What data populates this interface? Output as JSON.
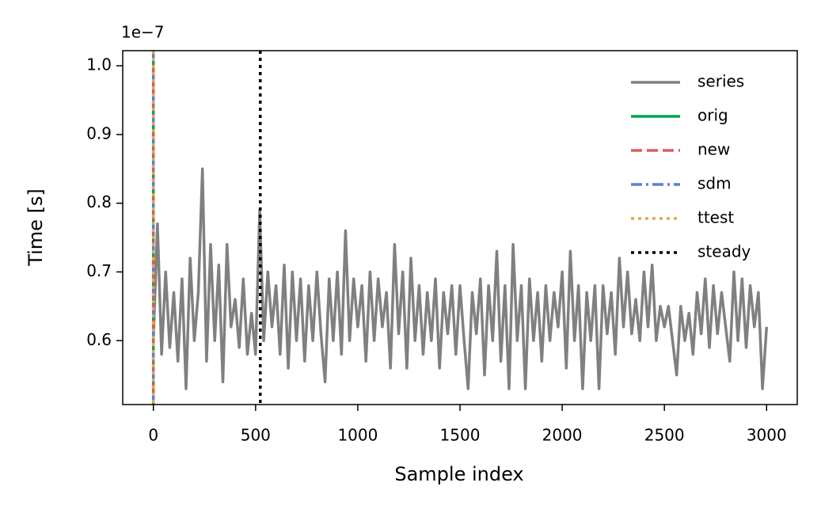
{
  "chart_data": {
    "type": "line",
    "xlabel": "Sample index",
    "ylabel": "Time [s]",
    "offset_text": "1e−7",
    "xlim": [
      -150,
      3150
    ],
    "xticks": [
      0,
      500,
      1000,
      1500,
      2000,
      2500,
      3000
    ],
    "ylim": [
      0.507,
      1.022
    ],
    "yticks": [
      0.6,
      0.7,
      0.8,
      0.9,
      {
        "value": 1,
        "label": "1.0"
      }
    ],
    "legend": "upper right",
    "series": [
      {
        "name": "series",
        "color": "#808080",
        "x": [
          0,
          20,
          40,
          60,
          80,
          100,
          120,
          140,
          160,
          180,
          200,
          220,
          240,
          260,
          280,
          300,
          320,
          340,
          360,
          380,
          400,
          420,
          440,
          460,
          480,
          500,
          520,
          540,
          560,
          580,
          600,
          620,
          640,
          660,
          680,
          700,
          720,
          740,
          760,
          780,
          800,
          820,
          840,
          860,
          880,
          900,
          920,
          940,
          960,
          980,
          1000,
          1020,
          1040,
          1060,
          1080,
          1100,
          1120,
          1140,
          1160,
          1180,
          1200,
          1220,
          1240,
          1260,
          1280,
          1300,
          1320,
          1340,
          1360,
          1380,
          1400,
          1420,
          1440,
          1460,
          1480,
          1500,
          1520,
          1540,
          1560,
          1580,
          1600,
          1620,
          1640,
          1660,
          1680,
          1700,
          1720,
          1740,
          1760,
          1780,
          1800,
          1820,
          1840,
          1860,
          1880,
          1900,
          1920,
          1940,
          1960,
          1980,
          2000,
          2020,
          2040,
          2060,
          2080,
          2100,
          2120,
          2140,
          2160,
          2180,
          2200,
          2220,
          2240,
          2260,
          2280,
          2300,
          2320,
          2340,
          2360,
          2380,
          2400,
          2420,
          2440,
          2460,
          2480,
          2500,
          2520,
          2540,
          2560,
          2580,
          2600,
          2620,
          2640,
          2660,
          2680,
          2700,
          2720,
          2740,
          2760,
          2780,
          2800,
          2820,
          2840,
          2860,
          2880,
          2900,
          2920,
          2940,
          2960,
          2980,
          3000
        ],
        "values": [
          0.6,
          0.77,
          0.58,
          0.7,
          0.59,
          0.67,
          0.57,
          0.69,
          0.53,
          0.72,
          0.6,
          0.67,
          0.85,
          0.57,
          0.74,
          0.6,
          0.71,
          0.54,
          0.74,
          0.62,
          0.66,
          0.59,
          0.69,
          0.58,
          0.64,
          0.58,
          0.79,
          0.6,
          0.7,
          0.62,
          0.68,
          0.58,
          0.71,
          0.56,
          0.7,
          0.6,
          0.69,
          0.57,
          0.68,
          0.6,
          0.7,
          0.61,
          0.54,
          0.69,
          0.6,
          0.7,
          0.58,
          0.76,
          0.6,
          0.69,
          0.62,
          0.68,
          0.57,
          0.7,
          0.6,
          0.69,
          0.62,
          0.67,
          0.56,
          0.74,
          0.61,
          0.7,
          0.56,
          0.72,
          0.6,
          0.68,
          0.58,
          0.67,
          0.6,
          0.69,
          0.56,
          0.67,
          0.61,
          0.68,
          0.58,
          0.68,
          0.6,
          0.53,
          0.67,
          0.61,
          0.69,
          0.55,
          0.68,
          0.6,
          0.73,
          0.57,
          0.68,
          0.53,
          0.74,
          0.6,
          0.68,
          0.53,
          0.69,
          0.6,
          0.67,
          0.57,
          0.68,
          0.6,
          0.67,
          0.62,
          0.7,
          0.56,
          0.73,
          0.6,
          0.68,
          0.53,
          0.67,
          0.6,
          0.68,
          0.53,
          0.68,
          0.61,
          0.67,
          0.58,
          0.72,
          0.62,
          0.7,
          0.61,
          0.66,
          0.6,
          0.7,
          0.62,
          0.71,
          0.6,
          0.65,
          0.62,
          0.65,
          0.6,
          0.55,
          0.65,
          0.6,
          0.64,
          0.58,
          0.67,
          0.61,
          0.69,
          0.59,
          0.68,
          0.61,
          0.67,
          0.62,
          0.57,
          0.7,
          0.6,
          0.69,
          0.59,
          0.68,
          0.62,
          0.67,
          0.53,
          0.62
        ]
      }
    ],
    "vlines": [
      {
        "name": "orig",
        "color": "#00a651",
        "dash": "solid",
        "x": 0
      },
      {
        "name": "new",
        "color": "#d65f5f",
        "dash": "dashed",
        "x": 0
      },
      {
        "name": "sdm",
        "color": "#5b7fd6",
        "dash": "dashdot",
        "x": 0
      },
      {
        "name": "ttest",
        "color": "#d9ac4c",
        "dash": "dotted",
        "x": 0
      },
      {
        "name": "steady",
        "color": "#000000",
        "dash": "dotted",
        "x": 523
      }
    ]
  }
}
